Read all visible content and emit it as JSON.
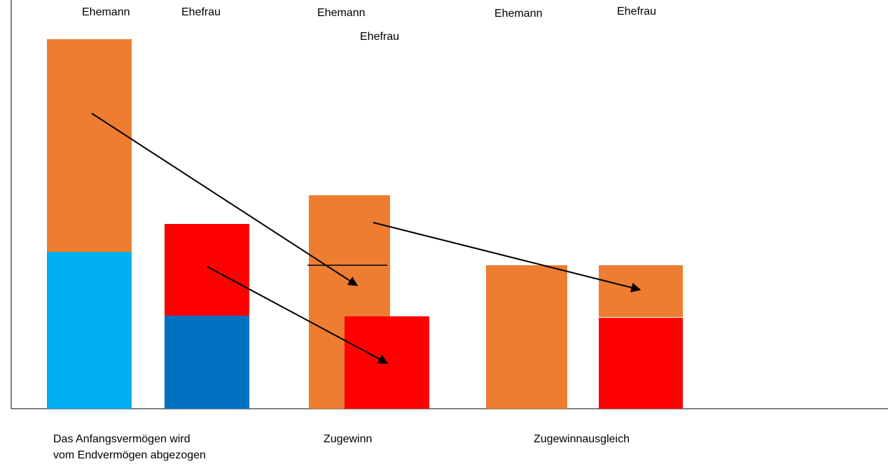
{
  "colors": {
    "orange": "#ED7D31",
    "light_blue": "#00B0F0",
    "dark_blue": "#0070C0",
    "red": "#FF0000",
    "axis": "#000000",
    "arrow": "#000000"
  },
  "column_labels": {
    "husband_1": "Ehemann",
    "wife_1": "Ehefrau",
    "husband_2": "Ehemann",
    "wife_2": "Ehefrau",
    "husband_3": "Ehemann",
    "wife_3": "Ehefrau"
  },
  "captions": {
    "step1_line1": "Das Anfangsvermögen wird",
    "step1_line2": "vom Endvermögen abgezogen",
    "step2": "Zugewinn",
    "step3": "Zugewinnausgleich"
  }
}
